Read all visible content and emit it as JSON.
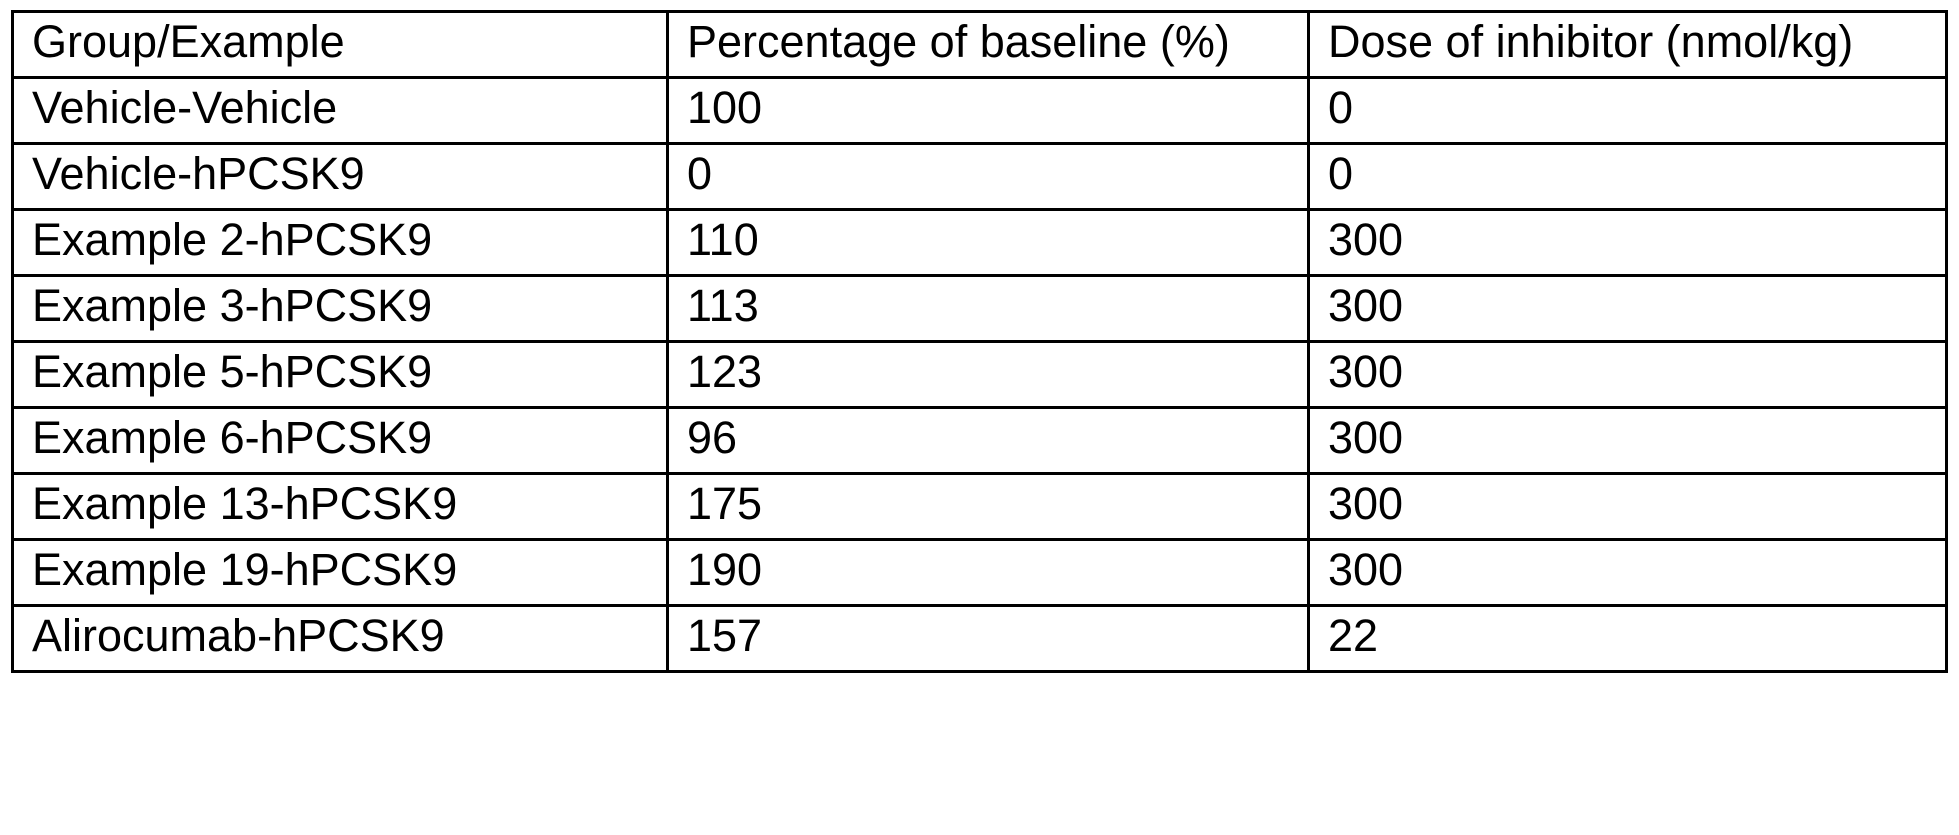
{
  "table": {
    "header": {
      "group": "Group/Example",
      "percentage": "Percentage of baseline (%)",
      "dose": "Dose of inhibitor (nmol/kg)"
    },
    "rows": [
      {
        "group": "Vehicle-Vehicle",
        "percentage": "100",
        "dose": "0"
      },
      {
        "group": "Vehicle-hPCSK9",
        "percentage": "0",
        "dose": "0"
      },
      {
        "group": "Example 2-hPCSK9",
        "percentage": "110",
        "dose": "300"
      },
      {
        "group": "Example 3-hPCSK9",
        "percentage": "113",
        "dose": "300"
      },
      {
        "group": "Example 5-hPCSK9",
        "percentage": "123",
        "dose": "300"
      },
      {
        "group": "Example 6-hPCSK9",
        "percentage": "96",
        "dose": "300"
      },
      {
        "group": "Example 13-hPCSK9",
        "percentage": "175",
        "dose": "300"
      },
      {
        "group": "Example 19-hPCSK9",
        "percentage": "190",
        "dose": "300"
      },
      {
        "group": "Alirocumab-hPCSK9",
        "percentage": "157",
        "dose": "22"
      }
    ],
    "colors": {
      "border": "#000000",
      "text": "#000000",
      "background": "#ffffff"
    }
  }
}
